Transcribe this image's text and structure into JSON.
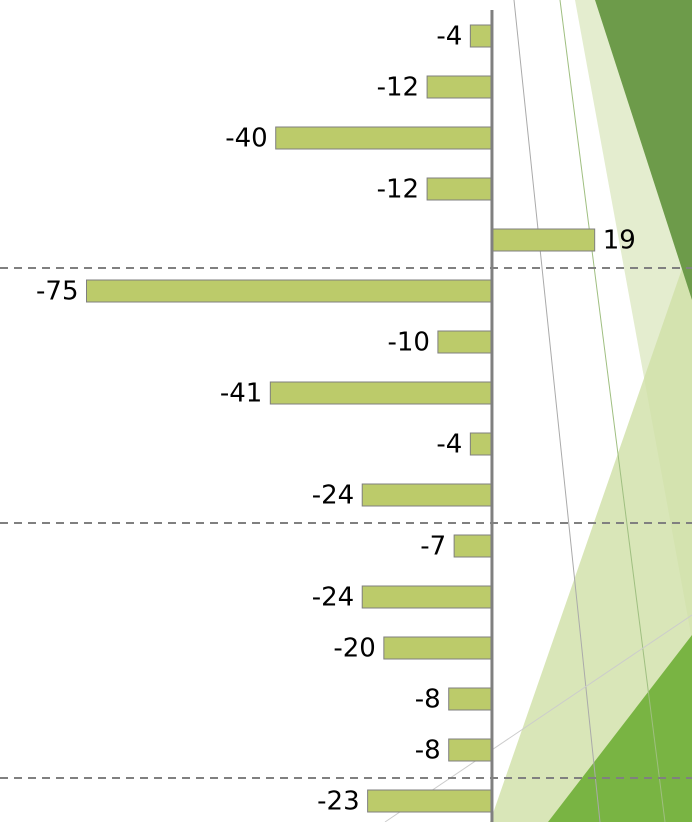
{
  "chart_data": {
    "type": "hbar",
    "values": [
      -4,
      -12,
      -40,
      -12,
      19,
      -75,
      -10,
      -41,
      -4,
      -24,
      -7,
      -24,
      -20,
      -8,
      -8,
      -23
    ],
    "color": "#bccb6a",
    "xlim": [
      -91,
      37
    ]
  }
}
